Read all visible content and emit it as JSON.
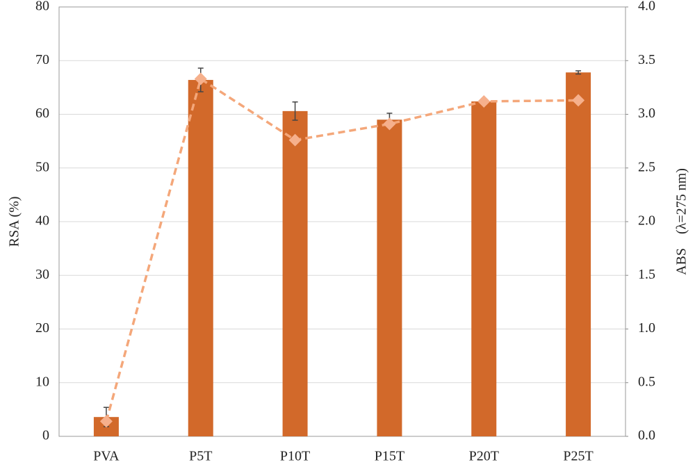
{
  "chart_data": {
    "type": "bar",
    "categories": [
      "PVA",
      "P5T",
      "P10T",
      "P15T",
      "P20T",
      "P25T"
    ],
    "y_label": "RSA (%)",
    "y2_label": "ABS　(λ=275 nm)",
    "ylim": [
      0,
      80
    ],
    "yticks": [
      0,
      10,
      20,
      30,
      40,
      50,
      60,
      70,
      80
    ],
    "y2lim": [
      0,
      4
    ],
    "y2ticks": [
      {
        "value": 0,
        "label": "0.0"
      },
      {
        "value": 0.5,
        "label": "0.5"
      },
      {
        "value": 1,
        "label": "1.0"
      },
      {
        "value": 1.5,
        "label": "1.5"
      },
      {
        "value": 2,
        "label": "2.0"
      },
      {
        "value": 2.5,
        "label": "2.5"
      },
      {
        "value": 3,
        "label": "3.0"
      },
      {
        "value": 3.5,
        "label": "3.5"
      },
      {
        "value": 4,
        "label": "4.0"
      }
    ],
    "grid": true,
    "series": [
      {
        "type": "bar",
        "color": "#d2692a",
        "values": [
          3.6,
          66.4,
          60.6,
          59.0,
          62.4,
          67.8
        ],
        "errors": [
          1.8,
          2.2,
          1.7,
          1.2,
          0.2,
          0.3
        ]
      },
      {
        "type": "line",
        "axis": "y2",
        "color": "#f4a77a",
        "dashed": true,
        "values": [
          0.14,
          3.33,
          2.76,
          2.91,
          3.12,
          3.13
        ]
      }
    ]
  }
}
